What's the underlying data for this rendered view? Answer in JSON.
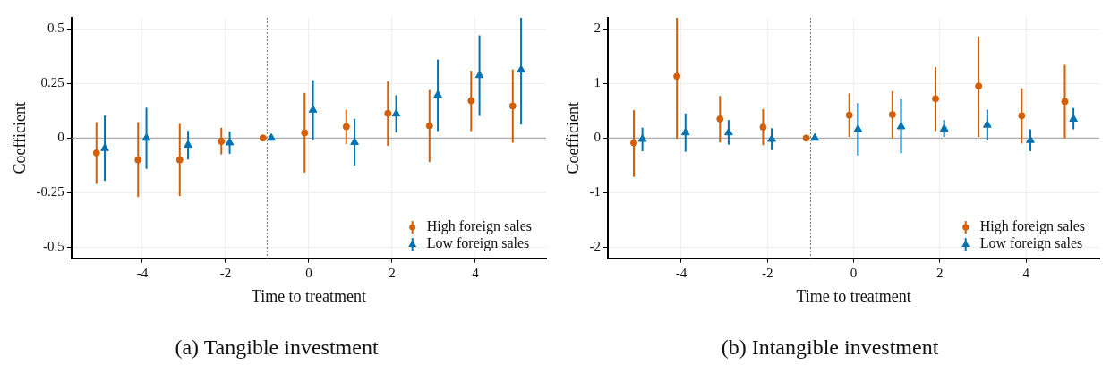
{
  "chart_data": [
    {
      "type": "scatter",
      "title": "(a) Tangible investment",
      "xlabel": "Time to treatment",
      "ylabel": "Coefficient",
      "xlim": [
        -5.7,
        5.7
      ],
      "ylim": [
        -0.55,
        0.55
      ],
      "xticks": [
        -4,
        -2,
        0,
        2,
        4
      ],
      "yticks": [
        -0.5,
        -0.25,
        0,
        0.25,
        0.5
      ],
      "grid": true,
      "legend": "bottom right",
      "ref_lines": [
        {
          "axis": "y",
          "value": 0,
          "color": "#999999",
          "line_style": "solid"
        },
        {
          "axis": "x",
          "value": -1,
          "color": "#777777",
          "line_style": "dotted"
        }
      ],
      "series": [
        {
          "name": "High foreign sales",
          "color": "#d55e00",
          "marker": "circle",
          "x": [
            -5.1,
            -4.1,
            -3.1,
            -2.1,
            -1.1,
            -0.1,
            0.9,
            1.9,
            2.9,
            3.9,
            4.9
          ],
          "values": [
            -0.068,
            -0.1,
            -0.1,
            -0.015,
            0,
            0.024,
            0.052,
            0.113,
            0.056,
            0.171,
            0.147
          ],
          "errors": [
            [
              -0.21,
              0.073
            ],
            [
              -0.27,
              0.073
            ],
            [
              -0.265,
              0.065
            ],
            [
              -0.075,
              0.047
            ],
            null,
            [
              -0.158,
              0.207
            ],
            [
              -0.027,
              0.13
            ],
            [
              -0.035,
              0.259
            ],
            [
              -0.11,
              0.22
            ],
            [
              0.032,
              0.308
            ],
            [
              -0.021,
              0.314
            ]
          ]
        },
        {
          "name": "Low foreign sales",
          "color": "#0072b2",
          "marker": "triangle",
          "x": [
            -4.9,
            -3.9,
            -2.9,
            -1.9,
            -0.9,
            0.1,
            1.1,
            2.1,
            3.1,
            4.1,
            5.1
          ],
          "values": [
            -0.047,
            0,
            -0.032,
            -0.021,
            0,
            0.129,
            -0.019,
            0.111,
            0.197,
            0.287,
            0.312
          ],
          "errors": [
            [
              -0.196,
              0.103
            ],
            [
              -0.141,
              0.139
            ],
            [
              -0.098,
              0.033
            ],
            [
              -0.072,
              0.03
            ],
            null,
            [
              -0.007,
              0.265
            ],
            [
              -0.125,
              0.088
            ],
            [
              0.025,
              0.196
            ],
            [
              0.032,
              0.359
            ],
            [
              0.101,
              0.47
            ],
            [
              0.062,
              0.55
            ]
          ]
        }
      ]
    },
    {
      "type": "scatter",
      "title": "(b) Intangible investment",
      "xlabel": "Time to treatment",
      "ylabel": "Coefficient",
      "xlim": [
        -5.7,
        5.7
      ],
      "ylim": [
        -2.2,
        2.2
      ],
      "xticks": [
        -4,
        -2,
        0,
        2,
        4
      ],
      "yticks": [
        -2,
        -1,
        0,
        1,
        2
      ],
      "grid": true,
      "legend": "bottom right",
      "ref_lines": [
        {
          "axis": "y",
          "value": 0,
          "color": "#999999",
          "line_style": "solid"
        },
        {
          "axis": "x",
          "value": -1,
          "color": "#777777",
          "line_style": "dotted"
        }
      ],
      "series": [
        {
          "name": "High foreign sales",
          "color": "#d55e00",
          "marker": "circle",
          "x": [
            -5.1,
            -4.1,
            -3.1,
            -2.1,
            -1.1,
            -0.1,
            0.9,
            1.9,
            2.9,
            3.9,
            4.9
          ],
          "values": [
            -0.09,
            1.13,
            0.35,
            0.2,
            0,
            0.42,
            0.43,
            0.72,
            0.95,
            0.41,
            0.67
          ],
          "errors": [
            [
              -0.71,
              0.51
            ],
            [
              -0.01,
              2.2
            ],
            [
              -0.08,
              0.77
            ],
            [
              -0.13,
              0.53
            ],
            null,
            [
              0.02,
              0.82
            ],
            [
              -0.01,
              0.86
            ],
            [
              0.13,
              1.3
            ],
            [
              0.02,
              1.86
            ],
            [
              -0.1,
              0.91
            ],
            [
              0,
              1.34
            ]
          ]
        },
        {
          "name": "Low foreign sales",
          "color": "#0072b2",
          "marker": "triangle",
          "x": [
            -4.9,
            -3.9,
            -2.9,
            -1.9,
            -0.9,
            0.1,
            1.1,
            2.1,
            3.1,
            4.1,
            5.1
          ],
          "values": [
            -0.02,
            0.1,
            0.1,
            -0.02,
            0,
            0.16,
            0.21,
            0.17,
            0.24,
            -0.04,
            0.35
          ],
          "errors": [
            [
              -0.24,
              0.19
            ],
            [
              -0.25,
              0.45
            ],
            [
              -0.12,
              0.33
            ],
            [
              -0.22,
              0.18
            ],
            null,
            [
              -0.32,
              0.64
            ],
            [
              -0.28,
              0.71
            ],
            [
              0.02,
              0.33
            ],
            [
              -0.03,
              0.52
            ],
            [
              -0.24,
              0.16
            ],
            [
              0.16,
              0.55
            ]
          ]
        }
      ]
    }
  ]
}
